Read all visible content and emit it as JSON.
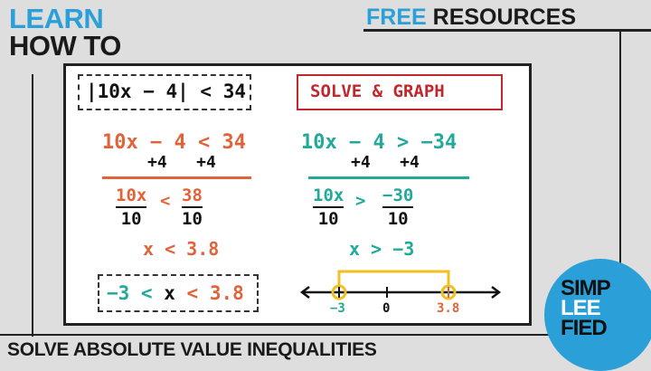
{
  "header": {
    "learn": "LEARN",
    "how_to": "HOW TO",
    "free": "FREE",
    "resources": "RESOURCES"
  },
  "board": {
    "problem": "|10x − 4| < 34",
    "solve_graph": "SOLVE & GRAPH",
    "left": {
      "eq1": "10x − 4 < 34",
      "add": "+4   +4",
      "num_left": "10x",
      "op": "<",
      "num_right": "38",
      "den_left": "10",
      "den_right": "10",
      "result": "x < 3.8"
    },
    "right": {
      "eq1": "10x − 4 > −34",
      "add": "+4   +4",
      "num_left": "10x",
      "op": ">",
      "num_right": "−30",
      "den_left": "10",
      "den_right": "10",
      "result": "x > −3"
    },
    "answer": {
      "low": "−3 <",
      "x": "x",
      "high": "< 3.8"
    },
    "number_line": {
      "labels": [
        "−3",
        "0",
        "3.8"
      ]
    }
  },
  "footer": {
    "title": "SOLVE ABSOLUTE VALUE INEQUALITIES"
  },
  "logo": {
    "lines": [
      "SIMP",
      "LEE",
      "FIED"
    ]
  },
  "colors": {
    "blue": "#2a9fd8",
    "orange": "#e0643a",
    "teal": "#21a99a",
    "red": "#c0282d",
    "yellow": "#f0c020"
  }
}
